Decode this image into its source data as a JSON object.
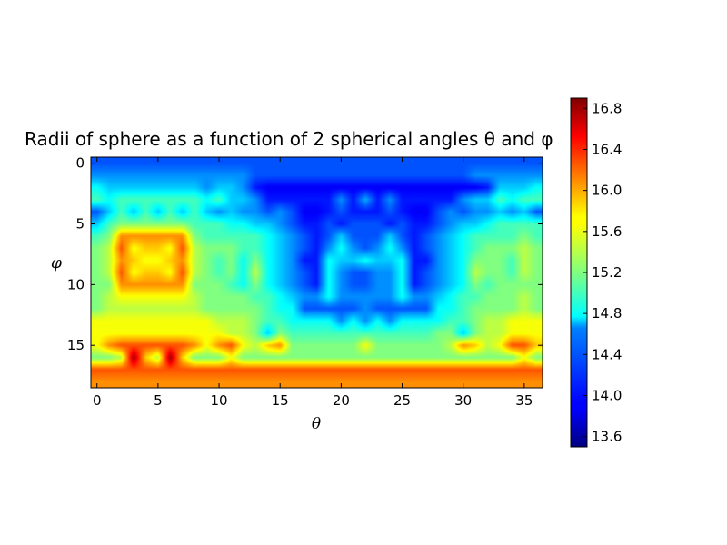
{
  "chart_data": {
    "type": "heatmap",
    "title": "Radii of sphere as a function of 2 spherical angles θ and φ",
    "xlabel": "θ",
    "ylabel": "φ",
    "colormap": "jet",
    "interpolation": "bilinear",
    "n_cols": 37,
    "n_rows": 19,
    "xlim": [
      -0.5,
      36.5
    ],
    "ylim": [
      18.5,
      -0.5
    ],
    "x_ticks": [
      0,
      5,
      10,
      15,
      20,
      25,
      30,
      35
    ],
    "y_ticks": [
      0,
      5,
      10,
      15
    ],
    "colorbar": {
      "vmin": 13.5,
      "vmax": 16.9,
      "ticks": [
        13.6,
        14.0,
        14.4,
        14.8,
        15.2,
        15.6,
        16.0,
        16.4,
        16.8
      ],
      "tick_labels": [
        "13.6",
        "14.0",
        "14.4",
        "14.8",
        "15.2",
        "15.6",
        "16.0",
        "16.4",
        "16.8"
      ]
    },
    "values": [
      [
        14.2,
        14.2,
        14.2,
        14.2,
        14.2,
        14.2,
        14.2,
        14.2,
        14.2,
        14.2,
        14.2,
        14.2,
        14.2,
        14.2,
        14.2,
        14.2,
        14.2,
        14.2,
        14.2,
        14.2,
        14.2,
        14.2,
        14.2,
        14.2,
        14.2,
        14.2,
        14.2,
        14.2,
        14.2,
        14.2,
        14.2,
        14.2,
        14.2,
        14.2,
        14.2,
        14.2,
        14.2
      ],
      [
        14.4,
        14.4,
        14.4,
        14.4,
        14.4,
        14.4,
        14.4,
        14.4,
        14.4,
        14.4,
        14.4,
        14.4,
        14.4,
        14.2,
        14.2,
        14.2,
        14.2,
        14.2,
        14.2,
        14.2,
        14.2,
        14.2,
        14.2,
        14.2,
        14.2,
        14.2,
        14.2,
        14.2,
        14.2,
        14.2,
        14.2,
        14.4,
        14.4,
        14.4,
        14.4,
        14.4,
        14.4
      ],
      [
        14.8,
        14.6,
        14.6,
        14.6,
        14.6,
        14.6,
        14.6,
        14.6,
        14.6,
        14.4,
        14.6,
        14.6,
        14.4,
        14.0,
        13.9,
        13.9,
        13.9,
        13.9,
        13.9,
        13.9,
        13.9,
        13.9,
        13.9,
        13.9,
        13.9,
        13.9,
        13.9,
        13.9,
        13.9,
        13.9,
        13.9,
        13.9,
        14.0,
        14.6,
        14.6,
        14.6,
        14.8
      ],
      [
        15.0,
        14.8,
        15.0,
        15.0,
        15.0,
        15.0,
        15.0,
        15.0,
        15.0,
        14.8,
        15.0,
        14.6,
        14.6,
        14.4,
        14.0,
        14.0,
        14.0,
        14.0,
        14.0,
        14.0,
        14.4,
        14.0,
        14.5,
        14.0,
        14.4,
        14.0,
        14.0,
        14.0,
        14.0,
        14.0,
        14.4,
        14.6,
        14.6,
        15.0,
        14.8,
        15.0,
        15.0
      ],
      [
        14.2,
        14.6,
        15.0,
        14.6,
        15.0,
        14.6,
        15.0,
        14.6,
        15.0,
        14.6,
        14.4,
        14.6,
        14.4,
        14.4,
        14.2,
        14.4,
        14.2,
        13.9,
        13.9,
        14.0,
        14.2,
        14.0,
        14.0,
        14.0,
        14.2,
        14.0,
        13.9,
        13.9,
        14.2,
        14.4,
        14.2,
        14.4,
        14.4,
        14.6,
        14.4,
        14.6,
        14.2
      ],
      [
        14.6,
        15.0,
        15.2,
        15.2,
        15.2,
        15.2,
        15.2,
        15.2,
        15.0,
        15.0,
        15.0,
        14.8,
        14.8,
        14.6,
        14.6,
        14.4,
        14.2,
        14.0,
        14.0,
        14.2,
        14.0,
        14.2,
        14.2,
        14.2,
        14.0,
        14.2,
        14.0,
        14.0,
        14.2,
        14.4,
        14.6,
        14.6,
        14.8,
        15.0,
        15.0,
        15.0,
        15.0
      ],
      [
        15.0,
        15.2,
        16.0,
        16.0,
        16.0,
        16.0,
        16.0,
        16.0,
        15.2,
        15.0,
        15.0,
        15.0,
        15.0,
        15.0,
        14.8,
        14.6,
        14.4,
        14.2,
        14.0,
        14.2,
        14.6,
        14.2,
        14.2,
        14.2,
        14.6,
        14.2,
        14.0,
        14.2,
        14.4,
        14.6,
        14.8,
        15.0,
        15.0,
        15.0,
        15.0,
        15.2,
        15.0
      ],
      [
        15.2,
        15.4,
        16.2,
        15.6,
        15.8,
        15.8,
        15.6,
        16.2,
        15.4,
        15.2,
        15.2,
        15.2,
        15.0,
        15.0,
        14.8,
        14.6,
        14.4,
        14.2,
        14.0,
        14.4,
        14.8,
        14.4,
        14.2,
        14.4,
        14.8,
        14.4,
        14.0,
        14.2,
        14.4,
        14.6,
        14.8,
        15.0,
        15.2,
        15.2,
        15.2,
        15.4,
        15.2
      ],
      [
        15.2,
        15.4,
        16.0,
        15.8,
        15.6,
        15.6,
        15.8,
        16.0,
        15.4,
        15.2,
        15.0,
        15.2,
        14.8,
        15.2,
        14.8,
        14.6,
        14.4,
        14.0,
        14.0,
        14.8,
        14.6,
        14.6,
        14.8,
        14.6,
        14.6,
        14.8,
        14.0,
        14.0,
        14.4,
        14.6,
        14.8,
        15.2,
        15.2,
        15.2,
        15.0,
        15.4,
        15.2
      ],
      [
        15.2,
        15.4,
        16.2,
        15.6,
        15.8,
        15.8,
        15.6,
        16.2,
        15.4,
        15.2,
        15.0,
        15.2,
        14.8,
        15.4,
        14.8,
        14.6,
        14.4,
        14.2,
        14.0,
        14.8,
        14.4,
        14.2,
        14.2,
        14.4,
        14.4,
        14.8,
        14.0,
        14.2,
        14.4,
        14.6,
        14.8,
        15.4,
        15.2,
        15.2,
        15.0,
        15.4,
        15.2
      ],
      [
        15.2,
        15.2,
        16.0,
        16.0,
        16.0,
        16.0,
        16.0,
        16.0,
        15.2,
        15.2,
        15.2,
        15.0,
        14.8,
        15.2,
        14.8,
        14.6,
        14.4,
        14.2,
        14.0,
        14.8,
        14.4,
        14.2,
        14.2,
        14.4,
        14.4,
        14.8,
        14.0,
        14.2,
        14.4,
        14.6,
        14.8,
        15.2,
        15.0,
        15.2,
        15.2,
        15.2,
        15.2
      ],
      [
        15.2,
        15.4,
        15.6,
        15.6,
        15.6,
        15.6,
        15.6,
        15.6,
        15.4,
        15.2,
        15.2,
        15.2,
        15.2,
        15.0,
        15.0,
        14.8,
        14.6,
        14.4,
        14.4,
        14.8,
        14.4,
        14.4,
        14.4,
        14.4,
        14.4,
        14.8,
        14.4,
        14.4,
        14.6,
        14.8,
        15.0,
        15.0,
        15.2,
        15.2,
        15.2,
        15.4,
        15.2
      ],
      [
        15.2,
        15.4,
        15.4,
        15.4,
        15.4,
        15.4,
        15.4,
        15.4,
        15.4,
        15.2,
        15.2,
        15.2,
        15.2,
        15.2,
        15.0,
        14.8,
        14.8,
        14.2,
        14.2,
        14.2,
        14.2,
        14.2,
        14.4,
        14.2,
        14.2,
        14.2,
        14.2,
        14.2,
        14.8,
        14.8,
        15.0,
        15.2,
        15.2,
        15.2,
        15.2,
        15.4,
        15.2
      ],
      [
        15.6,
        15.6,
        15.6,
        15.6,
        15.6,
        15.6,
        15.6,
        15.6,
        15.6,
        15.6,
        15.4,
        15.4,
        15.4,
        15.2,
        15.0,
        15.0,
        14.8,
        14.8,
        14.8,
        14.8,
        14.4,
        14.8,
        14.4,
        14.8,
        14.4,
        14.8,
        14.8,
        14.8,
        14.8,
        15.0,
        15.0,
        15.2,
        15.4,
        15.4,
        15.6,
        15.6,
        15.6
      ],
      [
        15.6,
        15.6,
        15.6,
        15.6,
        15.6,
        15.6,
        15.6,
        15.6,
        15.6,
        15.6,
        15.6,
        15.4,
        15.4,
        15.2,
        14.6,
        15.2,
        15.0,
        15.0,
        15.0,
        15.0,
        15.0,
        15.0,
        15.0,
        15.0,
        15.0,
        15.0,
        15.0,
        15.0,
        15.2,
        15.2,
        14.6,
        15.2,
        15.4,
        15.4,
        15.6,
        15.6,
        15.6
      ],
      [
        15.6,
        16.0,
        16.2,
        16.2,
        16.2,
        16.2,
        16.2,
        16.2,
        16.0,
        15.6,
        16.0,
        16.2,
        15.6,
        15.4,
        15.8,
        16.0,
        15.2,
        15.2,
        15.2,
        15.2,
        15.2,
        15.2,
        15.6,
        15.2,
        15.2,
        15.2,
        15.2,
        15.2,
        15.2,
        15.4,
        16.0,
        15.8,
        15.4,
        15.6,
        16.2,
        16.2,
        15.8
      ],
      [
        15.2,
        15.2,
        15.4,
        16.8,
        15.8,
        15.4,
        16.8,
        15.8,
        15.2,
        15.2,
        15.2,
        15.6,
        15.2,
        15.2,
        15.2,
        15.2,
        15.2,
        15.2,
        15.2,
        15.2,
        15.2,
        15.2,
        15.2,
        15.2,
        15.2,
        15.2,
        15.2,
        15.2,
        15.2,
        15.2,
        15.2,
        15.2,
        15.2,
        15.2,
        15.2,
        15.6,
        15.2
      ],
      [
        16.2,
        16.2,
        16.2,
        16.2,
        16.2,
        16.2,
        16.2,
        16.2,
        16.2,
        16.2,
        16.2,
        16.2,
        16.2,
        16.2,
        16.2,
        16.2,
        16.2,
        16.2,
        16.2,
        16.2,
        16.2,
        16.2,
        16.2,
        16.2,
        16.2,
        16.2,
        16.2,
        16.2,
        16.2,
        16.2,
        16.2,
        16.2,
        16.2,
        16.2,
        16.2,
        16.2,
        16.2
      ],
      [
        16.0,
        16.0,
        16.0,
        16.0,
        16.0,
        16.0,
        16.0,
        16.0,
        16.0,
        16.0,
        16.0,
        16.0,
        16.0,
        16.0,
        16.0,
        16.0,
        16.0,
        16.0,
        16.0,
        16.0,
        16.0,
        16.0,
        16.0,
        16.0,
        16.0,
        16.0,
        16.0,
        16.0,
        16.0,
        16.0,
        16.0,
        16.0,
        16.0,
        16.0,
        16.0,
        16.0,
        16.0
      ]
    ]
  }
}
